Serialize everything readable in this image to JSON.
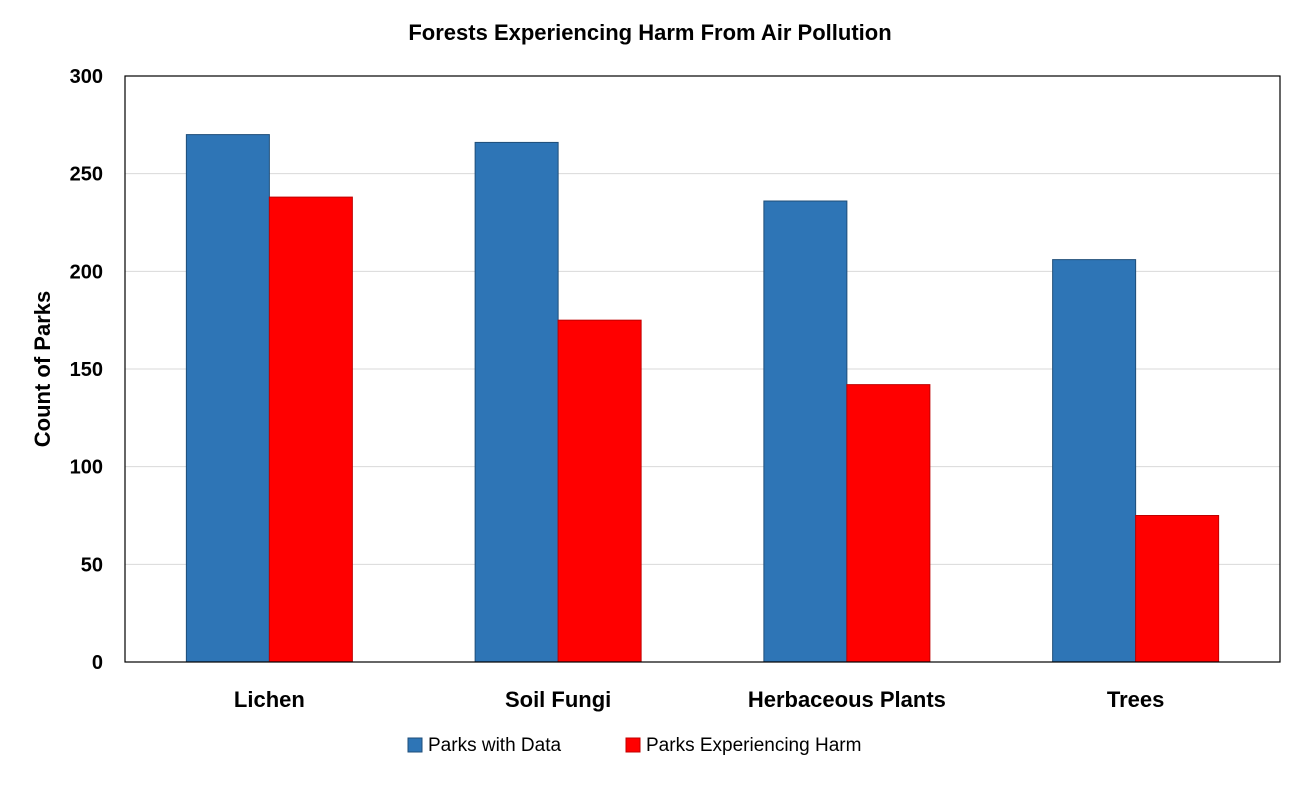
{
  "chart_data": {
    "type": "bar",
    "title": "Forests Experiencing Harm From Air Pollution",
    "xlabel": "",
    "ylabel": "Count of Parks",
    "ylim": [
      0,
      300
    ],
    "yticks": [
      0,
      50,
      100,
      150,
      200,
      250,
      300
    ],
    "grid": true,
    "legend_position": "bottom",
    "categories": [
      "Lichen",
      "Soil Fungi",
      "Herbaceous Plants",
      "Trees"
    ],
    "series": [
      {
        "name": "Parks with Data",
        "color": "#2E75B6",
        "values": [
          270,
          266,
          236,
          206
        ]
      },
      {
        "name": "Parks Experiencing Harm",
        "color": "#FF0000",
        "values": [
          238,
          175,
          142,
          75
        ]
      }
    ]
  }
}
